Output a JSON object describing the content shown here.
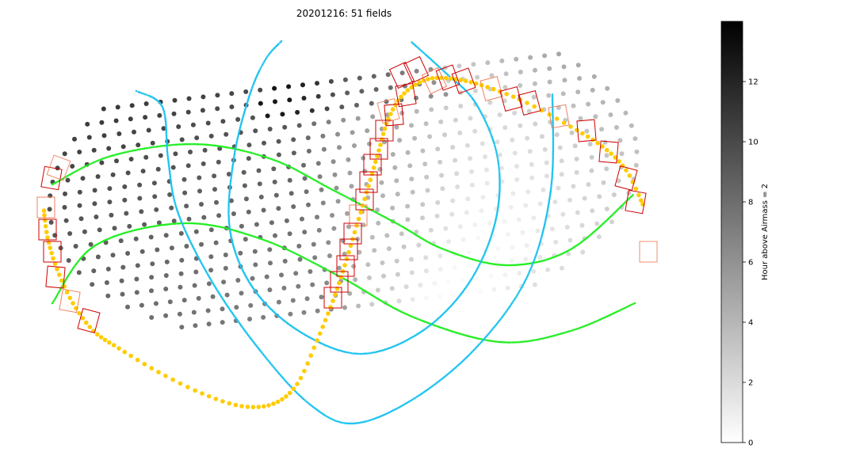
{
  "chart_data": {
    "type": "scatter",
    "title": "20201216: 51 fields",
    "projection": "hammer-aitoff sky map",
    "colorbar": {
      "label": "Hour above Airmass = 2",
      "ticks": [
        0,
        2,
        4,
        6,
        8,
        10,
        12
      ],
      "range": [
        0,
        14
      ],
      "colormap": "greys"
    },
    "series": [
      {
        "kind": "grid-fields",
        "color_by": "hours above airmass 2"
      },
      {
        "kind": "curve",
        "color": "#ffcc00"
      },
      {
        "kind": "curve",
        "color": "#1ec3f0"
      },
      {
        "kind": "curve",
        "color": "#22ee22"
      },
      {
        "kind": "field-outlines",
        "color": "#cc0000"
      }
    ],
    "colors": {
      "galactic_plane": "#ffcc00",
      "sky_curves": "#1ec3f0",
      "ecliptic": "#22ee22",
      "field_outline": "#cc0000",
      "field_outline_light": "#f08060"
    }
  }
}
